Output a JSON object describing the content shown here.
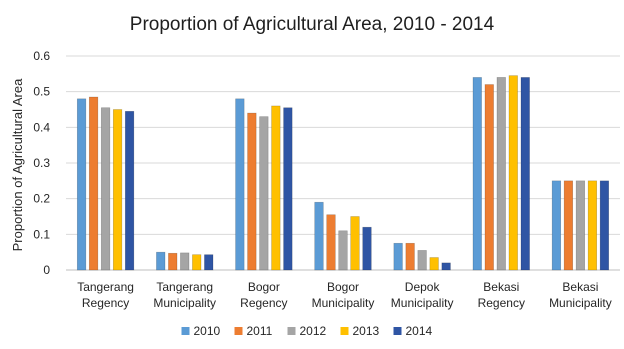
{
  "chart_data": {
    "type": "bar",
    "title": "Proportion of Agricultural Area, 2010 - 2014",
    "ylabel": "Proportion of Agricultural Area",
    "xlabel": "",
    "ylim": [
      0,
      0.6
    ],
    "yticks": [
      "0",
      "0.1",
      "0.2",
      "0.3",
      "0.4",
      "0.5",
      "0.6"
    ],
    "grid": true,
    "legend_position": "bottom",
    "categories": [
      [
        "Tangerang",
        "Regency"
      ],
      [
        "Tangerang",
        "Municipality"
      ],
      [
        "Bogor",
        "Regency"
      ],
      [
        "Bogor",
        "Municipality"
      ],
      [
        "Depok",
        "Municipality"
      ],
      [
        "Bekasi",
        "Regency"
      ],
      [
        "Bekasi",
        "Municipality"
      ]
    ],
    "series": [
      {
        "name": "2010",
        "color": "#5b9bd5",
        "values": [
          0.48,
          0.05,
          0.48,
          0.19,
          0.075,
          0.54,
          0.25
        ]
      },
      {
        "name": "2011",
        "color": "#ed7d31",
        "values": [
          0.485,
          0.047,
          0.44,
          0.155,
          0.075,
          0.52,
          0.25
        ]
      },
      {
        "name": "2012",
        "color": "#a5a5a5",
        "values": [
          0.455,
          0.048,
          0.43,
          0.11,
          0.055,
          0.54,
          0.25
        ]
      },
      {
        "name": "2013",
        "color": "#ffc000",
        "values": [
          0.45,
          0.043,
          0.46,
          0.15,
          0.035,
          0.545,
          0.25
        ]
      },
      {
        "name": "2014",
        "color": "#2f55a4",
        "values": [
          0.445,
          0.043,
          0.455,
          0.12,
          0.02,
          0.54,
          0.25
        ]
      }
    ]
  }
}
